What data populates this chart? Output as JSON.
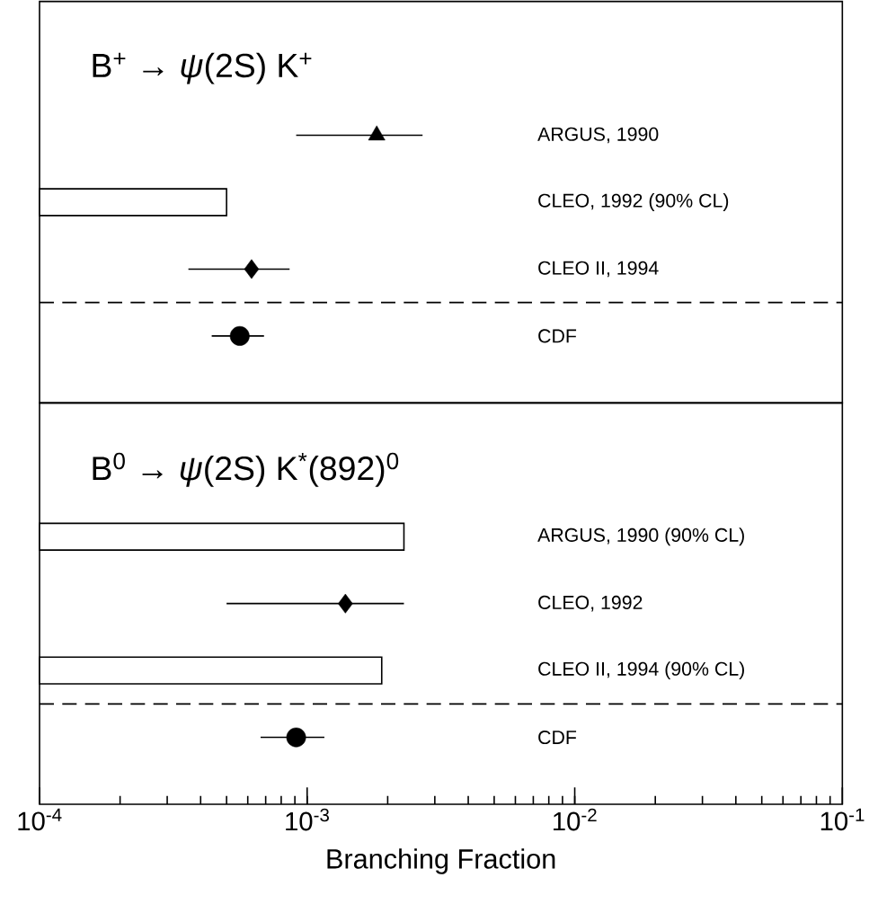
{
  "chart_data": [
    {
      "type": "scatter",
      "orientation": "horizontal",
      "log": "x",
      "title": "B$^{+}$ → *ψ*(2S) K$^{+}$",
      "categories": [
        "ARGUS, 1990",
        "CLEO, 1992  (90% CL)",
        "CLEO II, 1994",
        "CDF"
      ],
      "xlim": [
        0.0001,
        0.1
      ],
      "tick_labels": false,
      "grid": false,
      "series": [
        {
          "type": "bar",
          "color": "#000000",
          "values": [
            null,
            0.0005,
            null,
            null
          ]
        },
        {
          "marker": "triangle",
          "color": "#000000",
          "values": [
            0.00182,
            null,
            null,
            null
          ],
          "errors": [
            [
              0.00091,
              0.0027
            ],
            null,
            null,
            null
          ]
        },
        {
          "marker": "diamond",
          "color": "#000000",
          "values": [
            null,
            null,
            0.00062,
            null
          ],
          "errors": [
            null,
            null,
            [
              0.00036,
              0.00086
            ],
            null
          ]
        },
        {
          "marker": "circle",
          "color": "#000000",
          "values": [
            null,
            null,
            null,
            0.00056
          ],
          "errors": [
            null,
            null,
            null,
            [
              0.00044,
              0.00069
            ]
          ]
        }
      ]
    },
    {
      "type": "scatter",
      "orientation": "horizontal",
      "log": "x",
      "title": "B$^{0}$ → *ψ*(2S) K$^{*}$(892)$^{0}$",
      "xlabel": "Branching Fraction",
      "categories": [
        "ARGUS, 1990  (90% CL)",
        "CLEO, 1992",
        "CLEO II, 1994  (90% CL)",
        "CDF"
      ],
      "xlim": [
        0.0001,
        0.1
      ],
      "xticks": [
        {
          "value": 0.0001,
          "label": "10$^{-4}$"
        },
        {
          "value": 0.001,
          "label": "10$^{-3}$"
        },
        {
          "value": 0.01,
          "label": "10$^{-2}$"
        },
        {
          "value": 0.1,
          "label": "10$^{-1}$"
        }
      ],
      "tick_labels": "x",
      "grid": false,
      "series": [
        {
          "type": "bar",
          "color": "#000000",
          "values": [
            0.0023,
            null,
            0.0019,
            null
          ]
        },
        {
          "marker": "diamond",
          "color": "#000000",
          "values": [
            null,
            0.00139,
            null,
            null
          ],
          "errors": [
            null,
            [
              0.0005,
              0.0023
            ],
            null,
            null
          ]
        },
        {
          "marker": "circle",
          "color": "#000000",
          "values": [
            null,
            null,
            null,
            0.00091
          ],
          "errors": [
            null,
            null,
            null,
            [
              0.00067,
              0.00116
            ]
          ]
        }
      ]
    }
  ]
}
